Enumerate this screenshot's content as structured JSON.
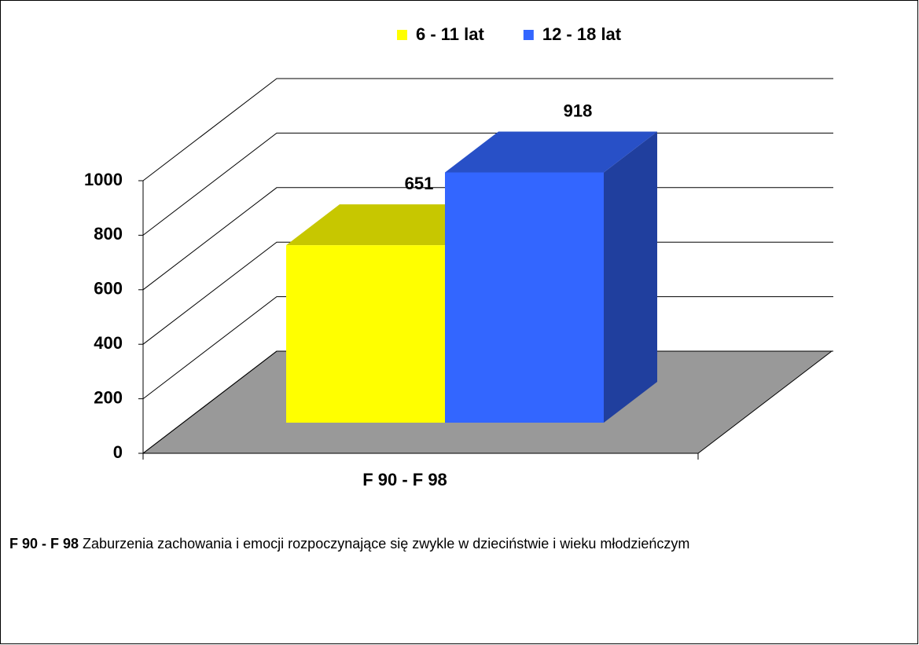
{
  "chart_data": {
    "type": "bar3d",
    "categories": [
      "F 90 - F 98"
    ],
    "series": [
      {
        "name": "6 - 11 lat",
        "color": "#ffff00",
        "values": [
          651
        ]
      },
      {
        "name": "12 - 18 lat",
        "color": "#3366ff",
        "values": [
          918
        ]
      }
    ],
    "ylim": [
      0,
      1000
    ],
    "yticks": [
      0,
      200,
      400,
      600,
      800,
      1000
    ],
    "grid": true,
    "legend": "top",
    "note": {
      "term": "F 90 - F 98",
      "text": "Zaburzenia zachowania i emocji rozpoczynające się zwykle w dzieciństwie i wieku młodzieńczym"
    }
  }
}
